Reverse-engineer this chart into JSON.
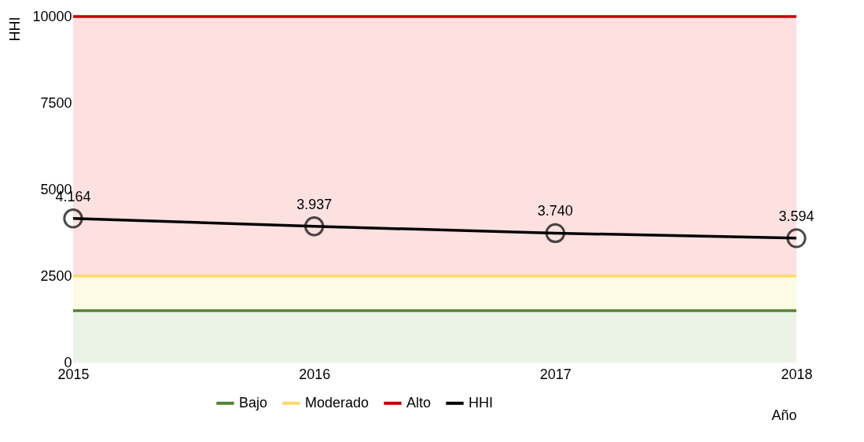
{
  "chart_data": {
    "type": "line",
    "xlabel": "Año",
    "ylabel": "HHI",
    "categories": [
      "2015",
      "2016",
      "2017",
      "2018"
    ],
    "ylim": [
      0,
      10000
    ],
    "yticks": [
      0,
      2500,
      5000,
      7500,
      10000
    ],
    "grid": false,
    "legend": "bottom",
    "line_style": "solid",
    "bands": [
      {
        "axis": "y",
        "from": 0,
        "to": 1500,
        "color": "#ebf3e6"
      },
      {
        "axis": "y",
        "from": 1500,
        "to": 2500,
        "color": "#fdfbe3"
      },
      {
        "axis": "y",
        "from": 2500,
        "to": 10000,
        "color": "#fde0e0"
      }
    ],
    "series": [
      {
        "name": "Bajo",
        "color": "#548235",
        "values": [
          1500,
          1500,
          1500,
          1500
        ]
      },
      {
        "name": "Moderado",
        "color": "#ffd966",
        "values": [
          2500,
          2500,
          2500,
          2500
        ]
      },
      {
        "name": "Alto",
        "color": "#c00000",
        "values": [
          10000,
          10000,
          10000,
          10000
        ]
      },
      {
        "name": "HHI",
        "color": "#000000",
        "marker": "circle",
        "values": [
          4164,
          3937,
          3740,
          3594
        ],
        "value_labels": [
          "4.164",
          "3.937",
          "3.740",
          "3.594"
        ]
      }
    ]
  }
}
